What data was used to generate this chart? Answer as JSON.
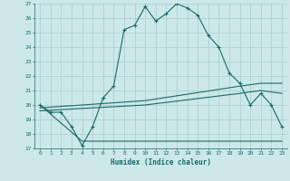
{
  "xlabel": "Humidex (Indice chaleur)",
  "background_color": "#cce8e8",
  "grid_color": "#aacccc",
  "line_color": "#1a6b6b",
  "xlim": [
    -0.5,
    23.5
  ],
  "ylim": [
    17,
    27
  ],
  "xticks": [
    0,
    1,
    2,
    3,
    4,
    5,
    6,
    7,
    8,
    9,
    10,
    11,
    12,
    13,
    14,
    15,
    16,
    17,
    18,
    19,
    20,
    21,
    22,
    23
  ],
  "yticks": [
    17,
    18,
    19,
    20,
    21,
    22,
    23,
    24,
    25,
    26,
    27
  ],
  "line1_x": [
    0,
    1,
    2,
    3,
    4,
    5,
    6,
    7,
    8,
    9,
    10,
    11,
    12,
    13,
    14,
    15,
    16,
    17,
    18,
    19,
    20,
    21,
    22,
    23
  ],
  "line1_y": [
    20.0,
    19.5,
    19.5,
    18.5,
    17.2,
    18.5,
    20.5,
    21.3,
    25.2,
    25.5,
    26.8,
    25.8,
    26.3,
    27.0,
    26.7,
    26.2,
    24.8,
    24.0,
    22.2,
    21.5,
    20.0,
    20.8,
    20.0,
    18.5
  ],
  "line2_x": [
    0,
    4,
    4,
    23
  ],
  "line2_y": [
    20.0,
    17.5,
    17.5,
    17.5
  ],
  "line3_x": [
    0,
    10,
    19,
    21,
    23
  ],
  "line3_y": [
    19.8,
    20.3,
    21.3,
    21.5,
    21.5
  ],
  "line4_x": [
    0,
    10,
    19,
    21,
    23
  ],
  "line4_y": [
    19.6,
    20.0,
    20.8,
    21.0,
    20.8
  ]
}
